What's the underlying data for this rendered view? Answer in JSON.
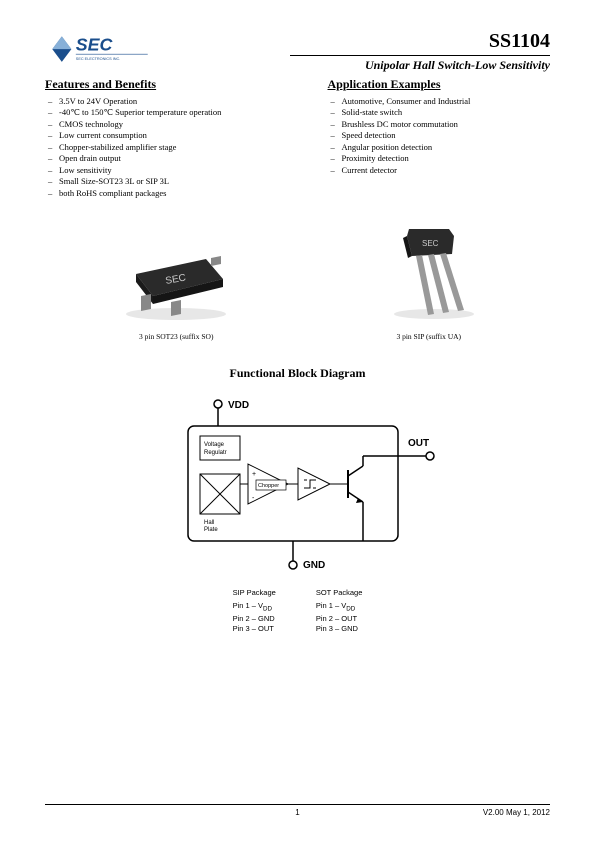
{
  "header": {
    "logo_text": "SEC",
    "logo_sub": "SEC ELECTRONICS INC.",
    "part_number": "SS1104",
    "subtitle": "Unipolar  Hall  Switch-Low  Sensitivity"
  },
  "features": {
    "title": "Features and Benefits",
    "items": [
      "3.5V to 24V Operation",
      "-40℃ to 150℃ Superior temperature operation",
      "CMOS technology",
      "Low current consumption",
      "Chopper-stabilized amplifier stage",
      "Open drain output",
      "Low sensitivity",
      "Small Size-SOT23 3L or SIP 3L",
      "both RoHS compliant packages"
    ]
  },
  "applications": {
    "title": "Application Examples",
    "items": [
      "Automotive, Consumer and Industrial",
      "Solid-state switch",
      "Brushless DC motor commutation",
      "Speed detection",
      "Angular position detection",
      "Proximity detection",
      "Current detector"
    ]
  },
  "packages": {
    "sot23": {
      "label": "SEC",
      "caption": "3 pin SOT23 (suffix SO)"
    },
    "sip": {
      "label": "SEC",
      "caption": "3 pin SIP (suffix UA)"
    }
  },
  "diagram": {
    "title": "Functional Block Diagram",
    "labels": {
      "vdd": "VDD",
      "out": "OUT",
      "gnd": "GND",
      "voltage_reg": "Voltage\nRegulatr",
      "chopper": "Chopper",
      "hall": "Hall\nPlate"
    },
    "pinout": {
      "sip_title": "SIP Package",
      "sot_title": "SOT Package",
      "sip": [
        "Pin 1 – V",
        "Pin 2 – GND",
        "Pin 3 – OUT"
      ],
      "sot": [
        "Pin 1 – V",
        "Pin 2 – OUT",
        "Pin 3 – GND"
      ],
      "vdd_sub": "DD"
    }
  },
  "footer": {
    "page": "1",
    "version": "V2.00  May 1, 2012"
  },
  "colors": {
    "logo_blue": "#1a4e8c",
    "pkg_dark": "#2a2a2a",
    "pkg_gray": "#6b6b6b",
    "diagram_stroke": "#000000"
  }
}
